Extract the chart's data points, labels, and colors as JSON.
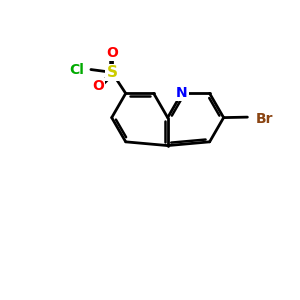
{
  "background_color": "#ffffff",
  "bond_color": "#000000",
  "atom_colors": {
    "N": "#0000ff",
    "S": "#cccc00",
    "O": "#ff0000",
    "Cl": "#00aa00",
    "Br": "#8b4513",
    "C": "#000000"
  },
  "figsize": [
    3.0,
    3.0
  ],
  "dpi": 100,
  "bl": 0.95
}
